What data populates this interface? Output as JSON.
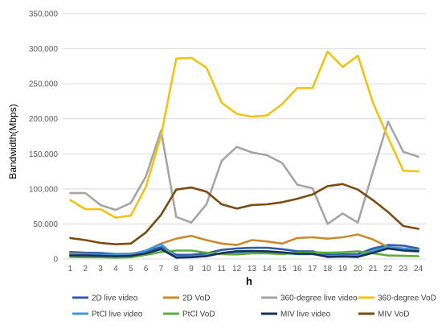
{
  "chart_data": {
    "type": "line",
    "title": "",
    "xlabel": "h",
    "ylabel": "Bandwidth(Mbps)",
    "ylim": [
      0,
      350000
    ],
    "yticks": [
      0,
      50000,
      100000,
      150000,
      200000,
      250000,
      300000,
      350000
    ],
    "ytick_labels": [
      "0",
      "50,000",
      "100,000",
      "150,000",
      "200,000",
      "250,000",
      "300,000",
      "350,000"
    ],
    "x": [
      1,
      2,
      3,
      4,
      5,
      6,
      7,
      8,
      9,
      10,
      11,
      12,
      13,
      14,
      15,
      16,
      17,
      18,
      19,
      20,
      21,
      22,
      23,
      24
    ],
    "x_tick_labels": [
      "1",
      "2",
      "3",
      "4",
      "5",
      "6",
      "7",
      "8",
      "9",
      "10",
      "11",
      "12",
      "13",
      "14",
      "15",
      "16",
      "17",
      "18",
      "19",
      "20",
      "21",
      "22",
      "23",
      "24"
    ],
    "grid": "horizontal",
    "legend_position": "bottom",
    "series": [
      {
        "name": "2D live video",
        "color": "#2e5fa8",
        "values": [
          10000,
          9000,
          8500,
          7000,
          7500,
          11000,
          17000,
          6000,
          6000,
          8000,
          13000,
          15000,
          16000,
          16000,
          14000,
          11000,
          11000,
          6000,
          6500,
          7000,
          15000,
          20000,
          19000,
          15000
        ]
      },
      {
        "name": "2D VoD",
        "color": "#cc8a2e",
        "values": [
          8000,
          7000,
          6000,
          6000,
          6500,
          12000,
          22000,
          29000,
          33000,
          27000,
          22000,
          20000,
          27000,
          25000,
          22000,
          30000,
          31000,
          29000,
          31000,
          35000,
          28000,
          17000,
          15000,
          13000
        ]
      },
      {
        "name": "360-degree live video",
        "color": "#a5a5a5",
        "values": [
          94000,
          94000,
          77000,
          70000,
          80000,
          118000,
          183000,
          60000,
          52000,
          78000,
          140000,
          160000,
          152000,
          148000,
          137000,
          106000,
          101000,
          50000,
          65000,
          52000,
          125000,
          196000,
          153000,
          146000
        ]
      },
      {
        "name": "360-degree VoD",
        "color": "#f2c314",
        "values": [
          84000,
          71000,
          71000,
          59000,
          62000,
          103000,
          176000,
          286000,
          287000,
          273000,
          223000,
          207000,
          203000,
          205000,
          221000,
          244000,
          244000,
          296000,
          274000,
          290000,
          223000,
          173000,
          126000,
          125000
        ]
      },
      {
        "name": "PtCl live video",
        "color": "#3f97dc",
        "values": [
          7000,
          6500,
          6000,
          5500,
          6000,
          12000,
          21000,
          3000,
          3500,
          5000,
          8000,
          9000,
          10000,
          10000,
          8500,
          7000,
          7000,
          4000,
          4500,
          4500,
          12000,
          17000,
          15000,
          13000
        ]
      },
      {
        "name": "PtCl VoD",
        "color": "#5cac3e",
        "values": [
          3000,
          2500,
          2500,
          2000,
          2500,
          6000,
          10000,
          12000,
          12000,
          9000,
          7000,
          6500,
          8000,
          8000,
          7000,
          9000,
          9500,
          9000,
          9500,
          11000,
          8000,
          5000,
          4500,
          4000
        ]
      },
      {
        "name": "MIV live video",
        "color": "#1a2f58",
        "values": [
          5000,
          5000,
          4500,
          4000,
          4500,
          8000,
          14000,
          2000,
          2500,
          4000,
          8500,
          11000,
          11500,
          11000,
          9500,
          7500,
          7500,
          3000,
          3500,
          3000,
          9000,
          15000,
          12000,
          11000
        ]
      },
      {
        "name": "MIV VoD",
        "color": "#7b4b12",
        "values": [
          30000,
          27000,
          23000,
          21000,
          22000,
          38000,
          63000,
          99000,
          102000,
          96000,
          78000,
          72000,
          77000,
          78000,
          81000,
          86000,
          92000,
          104000,
          107000,
          99000,
          84000,
          67000,
          47000,
          43000
        ]
      }
    ]
  }
}
